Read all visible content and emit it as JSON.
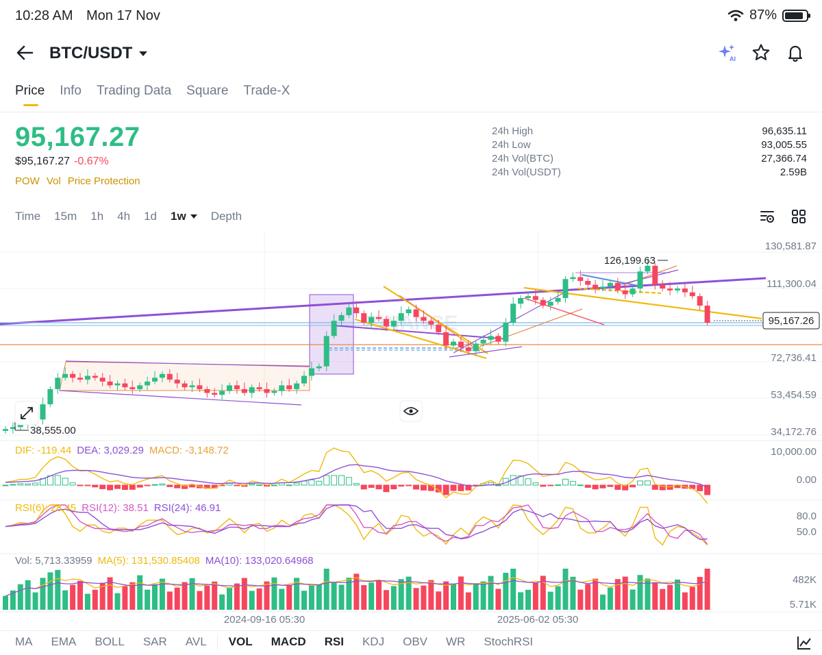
{
  "status": {
    "time": "10:28 AM",
    "date": "Mon 17 Nov",
    "battery": "87%",
    "battery_level": 0.87
  },
  "header": {
    "pair": "BTC/USDT",
    "icons": [
      "ai-sparkle-icon",
      "star-icon",
      "bell-icon"
    ]
  },
  "tabs": [
    {
      "label": "Price",
      "active": true
    },
    {
      "label": "Info"
    },
    {
      "label": "Trading Data"
    },
    {
      "label": "Square"
    },
    {
      "label": "Trade-X"
    }
  ],
  "ticker": {
    "last_price": "95,167.27",
    "usd_price": "$95,167.27",
    "change": "-0.67%",
    "tags": [
      "POW",
      "Vol",
      "Price Protection"
    ],
    "stats": [
      {
        "label": "24h High",
        "value": "96,635.11"
      },
      {
        "label": "24h Low",
        "value": "93,005.55"
      },
      {
        "label": "24h Vol(BTC)",
        "value": "27,366.74"
      },
      {
        "label": "24h Vol(USDT)",
        "value": "2.59B"
      }
    ]
  },
  "intervals": [
    "Time",
    "15m",
    "1h",
    "4h",
    "1d",
    "1w",
    "Depth"
  ],
  "selected_interval": "1w",
  "chart_data": {
    "type": "candlestick",
    "price_axis": [
      "130,581.87",
      "111,300.04",
      "72,736.41",
      "53,454.59",
      "34,172.76"
    ],
    "current_price_label": "95,167.26",
    "high_label": "126,199.63",
    "low_label": "38,555.00",
    "watermark": "BINANCE",
    "time_axis": [
      "2024-09-16 05:30",
      "2025-06-02 05:30"
    ],
    "closes": [
      39,
      40,
      41.5,
      42,
      44,
      52,
      60,
      66,
      68,
      66,
      65,
      67,
      66,
      64,
      62,
      63,
      61,
      60,
      62,
      64,
      66,
      68,
      65,
      63,
      61,
      62,
      60,
      58,
      57,
      59,
      62,
      60,
      58,
      61,
      60,
      58,
      59,
      62,
      60,
      63,
      67,
      71,
      72,
      88,
      96,
      99,
      103,
      100,
      95,
      98,
      97,
      93,
      96,
      100,
      102,
      98,
      96,
      94,
      90,
      83,
      85,
      82,
      80,
      84,
      86,
      88,
      85,
      95,
      105,
      108,
      109,
      107,
      104,
      106,
      108,
      118,
      119,
      117,
      115,
      113,
      114,
      116,
      112,
      110,
      113,
      122,
      125,
      115,
      113,
      112,
      113,
      111,
      109,
      104,
      95
    ],
    "macd": {
      "dif": "-119.44",
      "dea": "3,029.29",
      "macd": "-3,148.72",
      "axis": [
        "10,000.00",
        "0.00"
      ]
    },
    "rsi": {
      "rsi6": "28.45",
      "rsi12": "38.51",
      "rsi24": "46.91",
      "axis": [
        "80.0",
        "50.0"
      ]
    },
    "volume": {
      "vol": "5,713.33959",
      "ma5": "131,530.85408",
      "ma10": "133,020.64968",
      "axis": [
        "482K",
        "5.71K"
      ]
    }
  },
  "indicators": {
    "overlays": [
      "MA",
      "EMA",
      "BOLL",
      "SAR",
      "AVL"
    ],
    "oscillators": [
      "VOL",
      "MACD",
      "RSI",
      "KDJ",
      "OBV",
      "WR",
      "StochRSI"
    ],
    "active": [
      "VOL",
      "MACD",
      "RSI"
    ]
  },
  "colors": {
    "up": "#2ebd85",
    "down": "#f6465d",
    "accent": "#f0b90b",
    "purple": "#8e4fd6"
  }
}
